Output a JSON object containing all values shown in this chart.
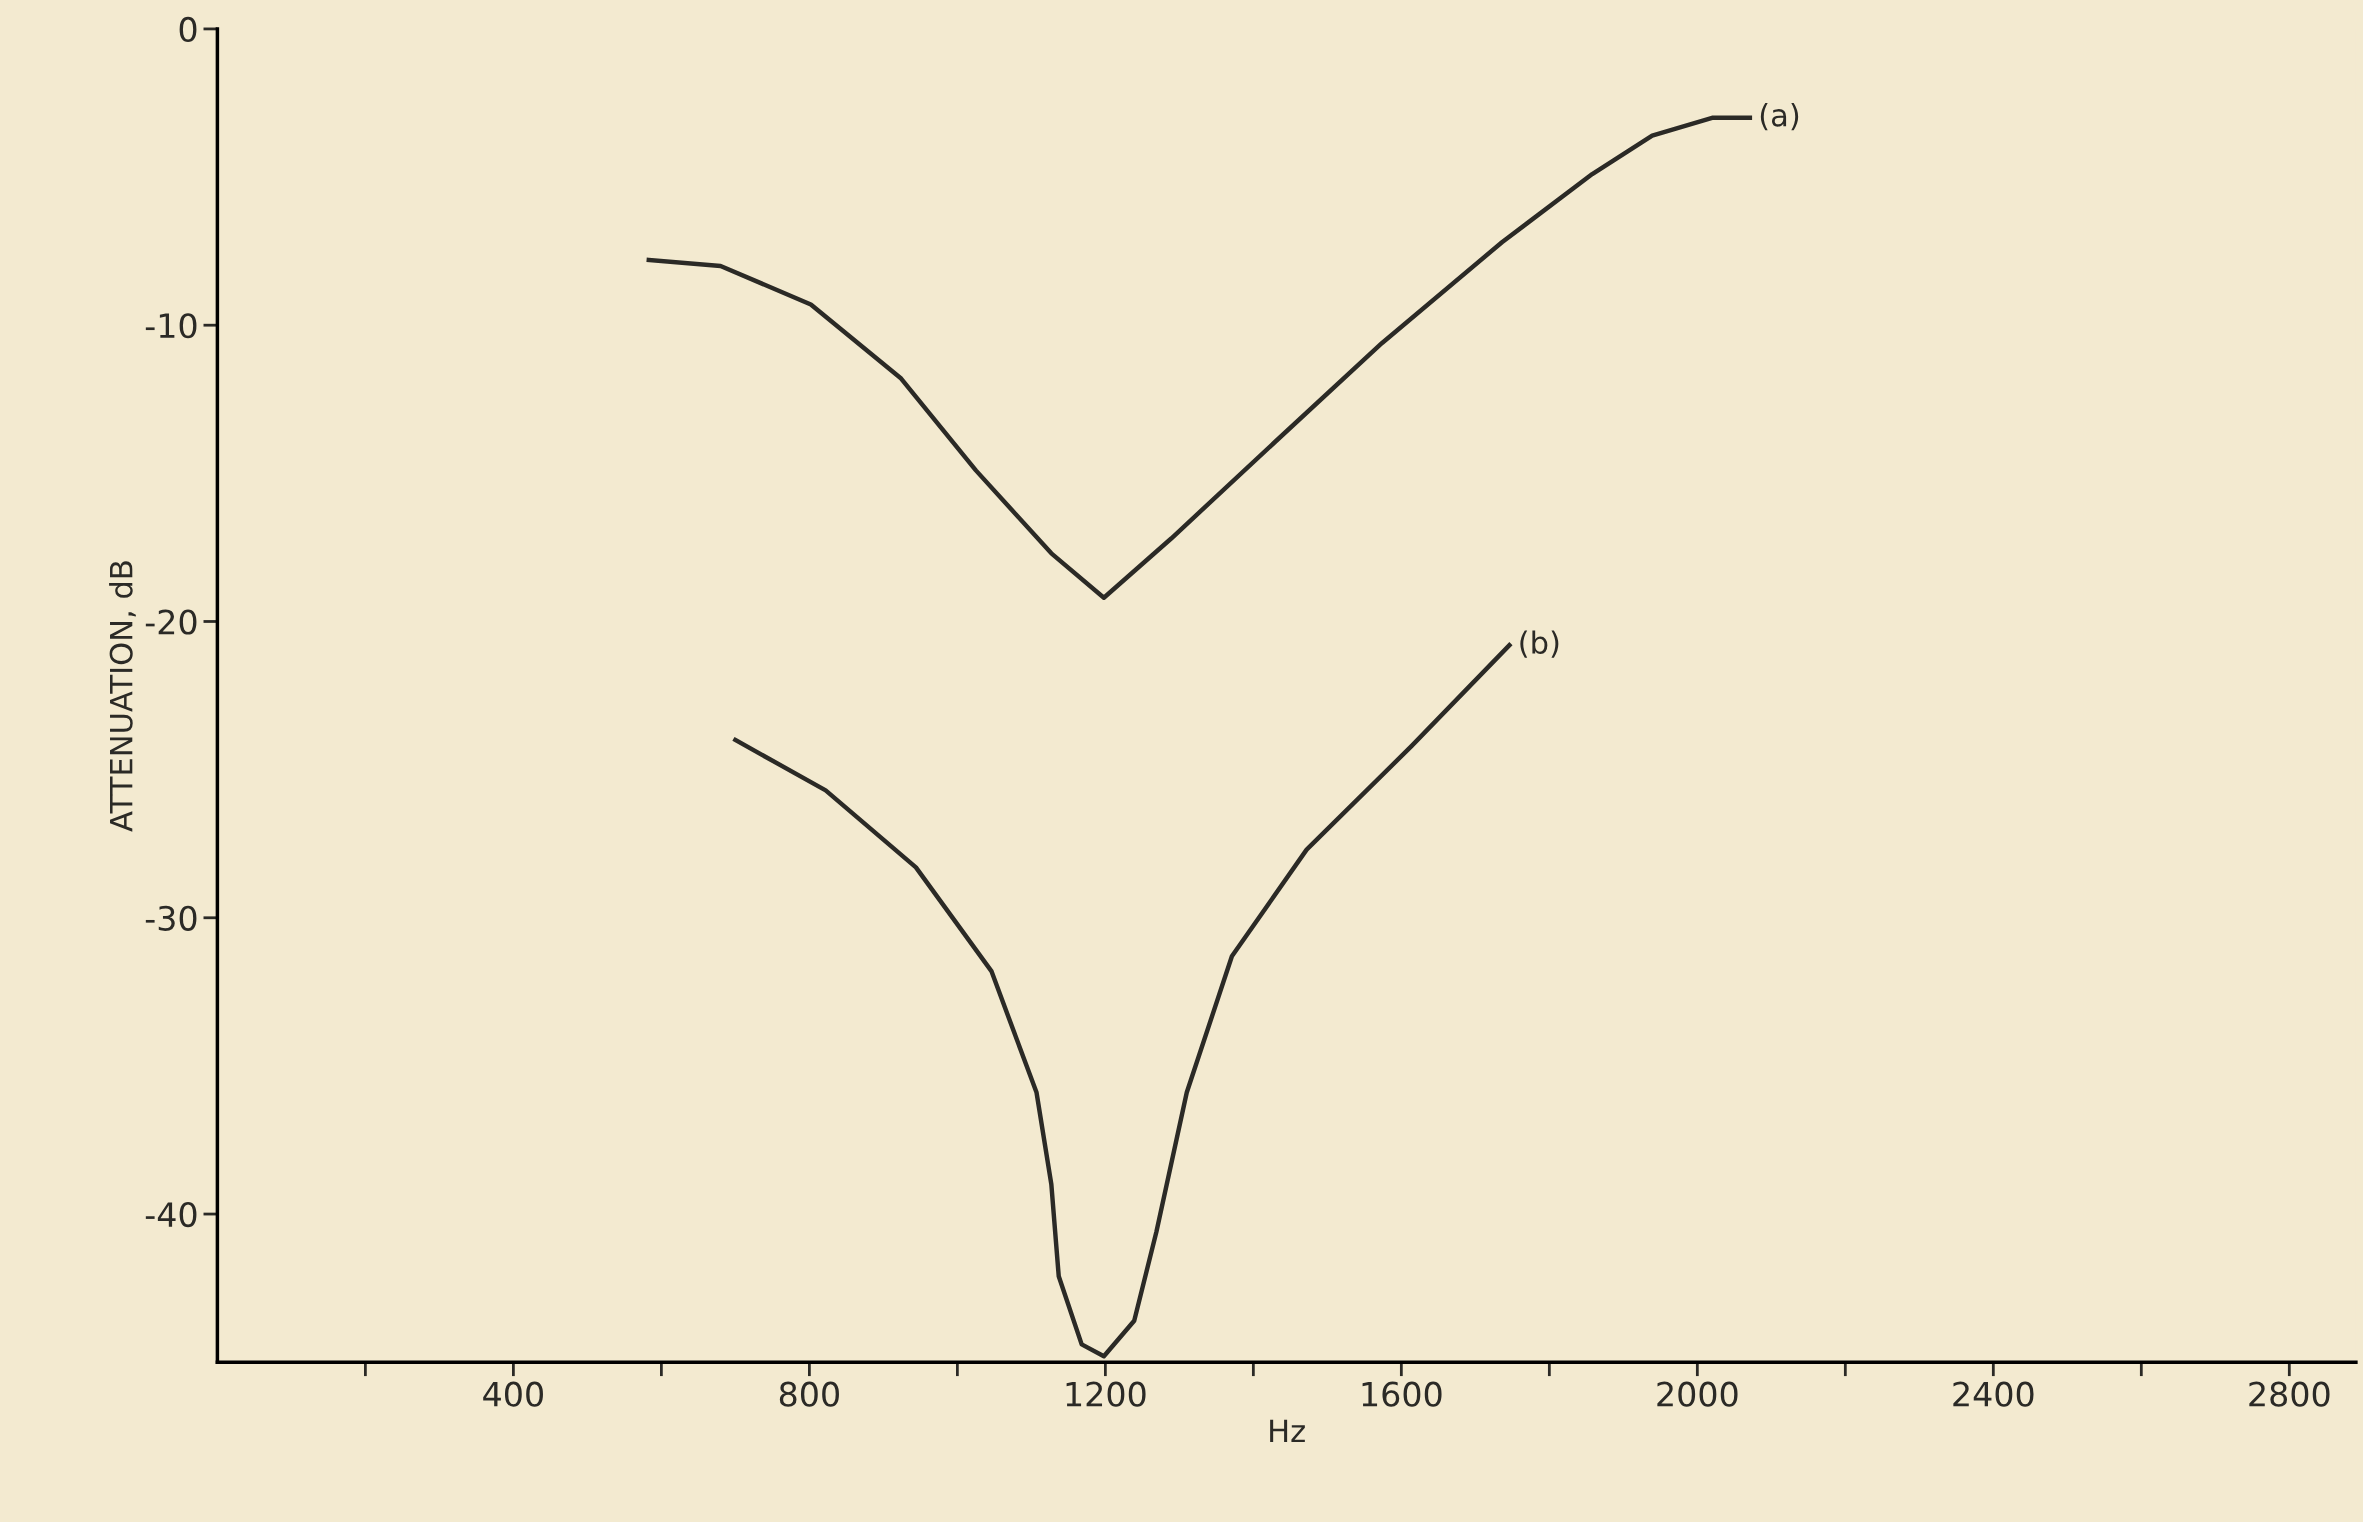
{
  "chart_data": {
    "type": "line",
    "xlabel": "Hz",
    "ylabel": "ATTENUATION, dB",
    "xlim": [
      0,
      2890
    ],
    "ylim": [
      -45,
      0
    ],
    "xticks": [
      {
        "value": 200,
        "label": null
      },
      400,
      {
        "value": 600,
        "label": null
      },
      800,
      {
        "value": 1000,
        "label": null
      },
      1200,
      {
        "value": 1400,
        "label": null
      },
      1600,
      {
        "value": 1800,
        "label": null
      },
      2000,
      {
        "value": 2200,
        "label": null
      },
      2400,
      {
        "value": 2600,
        "label": null
      },
      2800
    ],
    "yticks": [
      0,
      -10,
      -20,
      -30,
      -40
    ],
    "grid": false,
    "marker": "none",
    "line_style": "solid",
    "series": [
      {
        "color": "#2b2a26",
        "x": [
          583,
          680,
          802,
          924,
          1025,
          1127,
          1198,
          1289,
          1431,
          1574,
          1736,
          1858,
          1939,
          2020,
          2071
        ],
        "values": [
          -7.8,
          -8.0,
          -9.3,
          -11.8,
          -14.9,
          -17.7,
          -19.2,
          -17.2,
          -13.9,
          -10.6,
          -7.2,
          -4.9,
          -3.6,
          -3.0,
          -3.0
        ]
      },
      {
        "color": "#2b2a26",
        "x": [
          700,
          822,
          944,
          1046,
          1107,
          1127,
          1137,
          1168,
          1198,
          1239,
          1269,
          1310,
          1371,
          1472,
          1614,
          1746
        ],
        "values": [
          -24.0,
          -25.7,
          -28.3,
          -31.8,
          -35.9,
          -39.0,
          -42.1,
          -44.4,
          -44.8,
          -43.6,
          -40.6,
          -35.9,
          -31.3,
          -27.7,
          -24.2,
          -20.8
        ]
      }
    ],
    "annotations": [
      {
        "text": "(a)",
        "x": 2071,
        "y": -3.0
      },
      {
        "text": "(b)",
        "x": 1746,
        "y": -20.8
      }
    ]
  }
}
